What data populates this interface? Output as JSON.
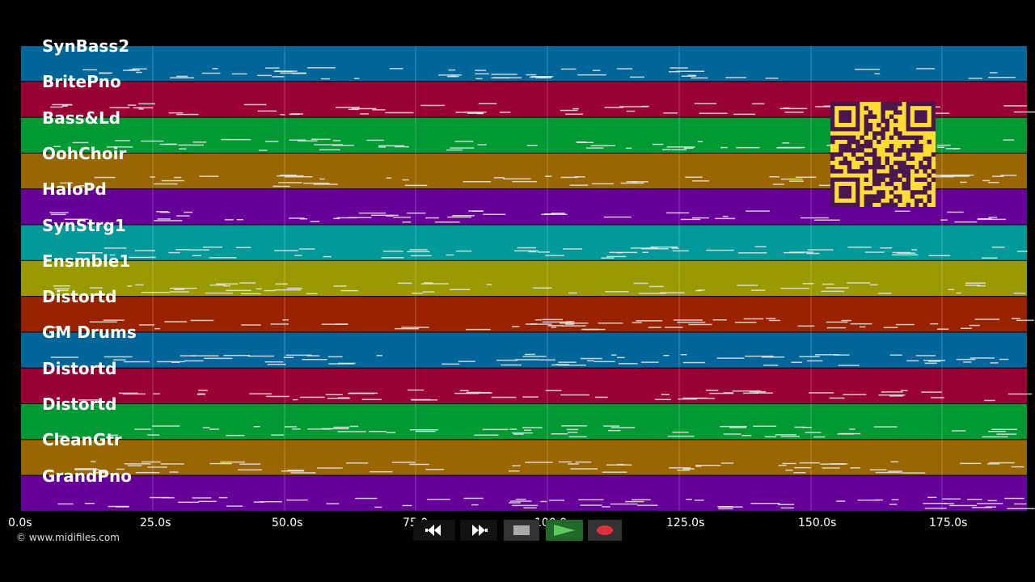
{
  "tracks": [
    {
      "name": "SynBass2",
      "color": "#006699"
    },
    {
      "name": "BritePno",
      "color": "#990033"
    },
    {
      "name": "Bass&Ld",
      "color": "#009933"
    },
    {
      "name": "OohChoir",
      "color": "#996600"
    },
    {
      "name": "HaloPd",
      "color": "#660099"
    },
    {
      "name": "SynStrg1",
      "color": "#009999"
    },
    {
      "name": "Ensmble1",
      "color": "#999900"
    },
    {
      "name": "Distortd",
      "color": "#992200"
    },
    {
      "name": "GM Drums",
      "color": "#006699"
    },
    {
      "name": "Distortd",
      "color": "#990033"
    },
    {
      "name": "Distortd",
      "color": "#009933"
    },
    {
      "name": "CleanGtr",
      "color": "#996600"
    },
    {
      "name": "GrandPno",
      "color": "#660099"
    }
  ],
  "timeline": {
    "ticks": [
      "0.0s",
      "25.0s",
      "50.0s",
      "75.0s",
      "100.0s",
      "125.0s",
      "150.0s",
      "175.0s"
    ]
  },
  "copyright": "© www.midifiles.com",
  "transport": {
    "rewind": "rewind-icon",
    "fast_forward": "fast-forward-icon",
    "stop": "stop-icon",
    "play": "play-icon",
    "record": "record-icon"
  },
  "colors": {
    "background": "#000000",
    "note": "#e8e8e8",
    "qr_bg": "#ffdd33",
    "qr_fg": "#4a1650",
    "play": "#2e9e3a",
    "record": "#e03040"
  }
}
